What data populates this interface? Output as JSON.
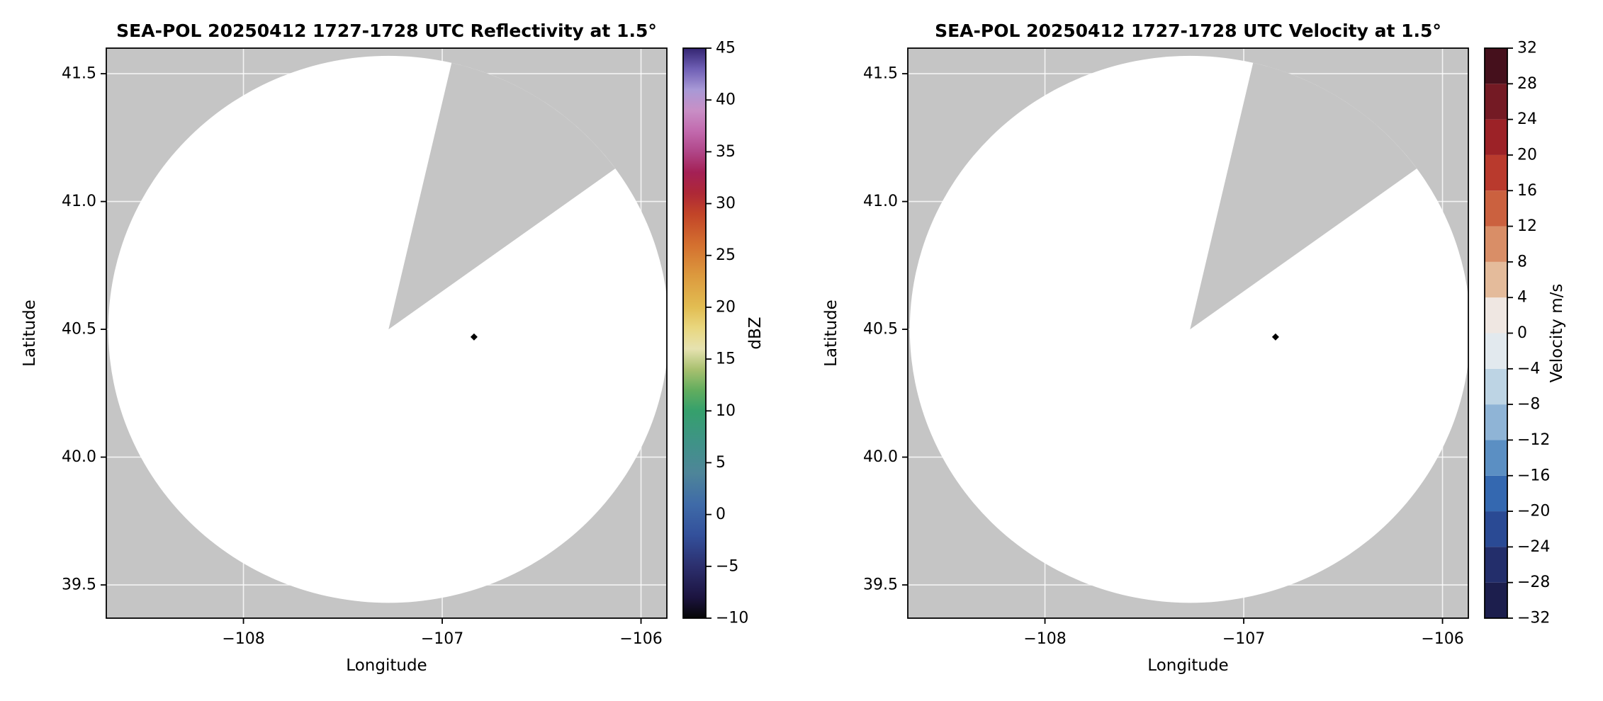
{
  "figure": {
    "background": "#ffffff",
    "axes_bg": "#c5c5c5",
    "grid_color": "#ffffff",
    "scan_fill": "#ffffff",
    "axis_color": "#000000"
  },
  "chart_data": [
    {
      "type": "radar_ppi",
      "title": "SEA-POL 20250412 1727-1728 UTC Reflectivity at 1.5°",
      "xlabel": "Longitude",
      "ylabel": "Latitude",
      "xlim": [
        -108.69,
        -105.87
      ],
      "ylim": [
        39.37,
        41.6
      ],
      "xticks": [
        -108,
        -107,
        -106
      ],
      "xtick_labels": [
        "−108",
        "−107",
        "−106"
      ],
      "yticks": [
        39.5,
        40.0,
        40.5,
        41.0,
        41.5
      ],
      "ytick_labels": [
        "39.5",
        "40.0",
        "40.5",
        "41.0",
        "41.5"
      ],
      "grid": true,
      "radar": {
        "center_lon": -107.27,
        "center_lat": 40.5,
        "radius_lon_deg": 1.41,
        "radius_lat_deg": 1.07,
        "blocked_sector_azimuth_deg": [
          13,
          54
        ]
      },
      "marker": {
        "lon": -106.84,
        "lat": 40.47,
        "shape": "diamond",
        "color": "#000000"
      },
      "colorbar": {
        "label": "dBZ",
        "orientation": "vertical",
        "style": "continuous",
        "min": -10,
        "max": 45,
        "ticks": [
          45,
          40,
          35,
          30,
          25,
          20,
          15,
          10,
          5,
          0,
          -5,
          -10
        ],
        "tick_labels": [
          "45",
          "40",
          "35",
          "30",
          "25",
          "20",
          "15",
          "10",
          "5",
          "0",
          "−5",
          "−10"
        ],
        "stops": [
          {
            "value": -10,
            "color": "#060606"
          },
          {
            "value": -8,
            "color": "#1c1440"
          },
          {
            "value": -5,
            "color": "#2c2f6e"
          },
          {
            "value": -2,
            "color": "#33509b"
          },
          {
            "value": 1,
            "color": "#3f6ba8"
          },
          {
            "value": 4,
            "color": "#4e8599"
          },
          {
            "value": 7,
            "color": "#3f9387"
          },
          {
            "value": 10,
            "color": "#35a06c"
          },
          {
            "value": 12,
            "color": "#62ad5e"
          },
          {
            "value": 14,
            "color": "#a8c06f"
          },
          {
            "value": 16,
            "color": "#e6e2b0"
          },
          {
            "value": 18,
            "color": "#e9d77f"
          },
          {
            "value": 20,
            "color": "#e2bd52"
          },
          {
            "value": 23,
            "color": "#dc9a3e"
          },
          {
            "value": 26,
            "color": "#d4702f"
          },
          {
            "value": 29,
            "color": "#c24428"
          },
          {
            "value": 31,
            "color": "#ae2837"
          },
          {
            "value": 33,
            "color": "#a42055"
          },
          {
            "value": 35,
            "color": "#b04688"
          },
          {
            "value": 37,
            "color": "#c26aae"
          },
          {
            "value": 39,
            "color": "#c88fc6"
          },
          {
            "value": 41,
            "color": "#a899d6"
          },
          {
            "value": 43,
            "color": "#6f5fb5"
          },
          {
            "value": 45,
            "color": "#342572"
          }
        ]
      }
    },
    {
      "type": "radar_ppi",
      "title": "SEA-POL 20250412 1727-1728 UTC Velocity at 1.5°",
      "xlabel": "Longitude",
      "ylabel": "Latitude",
      "xlim": [
        -108.69,
        -105.87
      ],
      "ylim": [
        39.37,
        41.6
      ],
      "xticks": [
        -108,
        -107,
        -106
      ],
      "xtick_labels": [
        "−108",
        "−107",
        "−106"
      ],
      "yticks": [
        39.5,
        40.0,
        40.5,
        41.0,
        41.5
      ],
      "ytick_labels": [
        "39.5",
        "40.0",
        "40.5",
        "41.0",
        "41.5"
      ],
      "grid": true,
      "radar": {
        "center_lon": -107.27,
        "center_lat": 40.5,
        "radius_lon_deg": 1.41,
        "radius_lat_deg": 1.07,
        "blocked_sector_azimuth_deg": [
          13,
          54
        ]
      },
      "marker": {
        "lon": -106.84,
        "lat": 40.47,
        "shape": "diamond",
        "color": "#000000"
      },
      "colorbar": {
        "label": "Velocity m/s",
        "orientation": "vertical",
        "style": "discrete",
        "min": -32,
        "max": 32,
        "ticks": [
          32,
          28,
          24,
          20,
          16,
          12,
          8,
          4,
          0,
          -4,
          -8,
          -12,
          -16,
          -20,
          -24,
          -28,
          -32
        ],
        "tick_labels": [
          "32",
          "28",
          "24",
          "20",
          "16",
          "12",
          "8",
          "4",
          "0",
          "−4",
          "−8",
          "−12",
          "−16",
          "−20",
          "−24",
          "−28",
          "−32"
        ],
        "bands": [
          {
            "from": -32,
            "to": -28,
            "color": "#1c1e4d"
          },
          {
            "from": -28,
            "to": -24,
            "color": "#232e6b"
          },
          {
            "from": -24,
            "to": -20,
            "color": "#2a4a94"
          },
          {
            "from": -20,
            "to": -16,
            "color": "#3468b0"
          },
          {
            "from": -16,
            "to": -12,
            "color": "#5b8fc3"
          },
          {
            "from": -12,
            "to": -8,
            "color": "#8fb4d6"
          },
          {
            "from": -8,
            "to": -4,
            "color": "#bdd4e4"
          },
          {
            "from": -4,
            "to": 0,
            "color": "#e2e9ee"
          },
          {
            "from": 0,
            "to": 4,
            "color": "#efe7e2"
          },
          {
            "from": 4,
            "to": 8,
            "color": "#e4bb9b"
          },
          {
            "from": 8,
            "to": 12,
            "color": "#d98e67"
          },
          {
            "from": 12,
            "to": 16,
            "color": "#cb613f"
          },
          {
            "from": 16,
            "to": 20,
            "color": "#b93a2d"
          },
          {
            "from": 20,
            "to": 24,
            "color": "#9c2227"
          },
          {
            "from": 24,
            "to": 28,
            "color": "#741a24"
          },
          {
            "from": 28,
            "to": 32,
            "color": "#45101c"
          }
        ]
      }
    }
  ]
}
